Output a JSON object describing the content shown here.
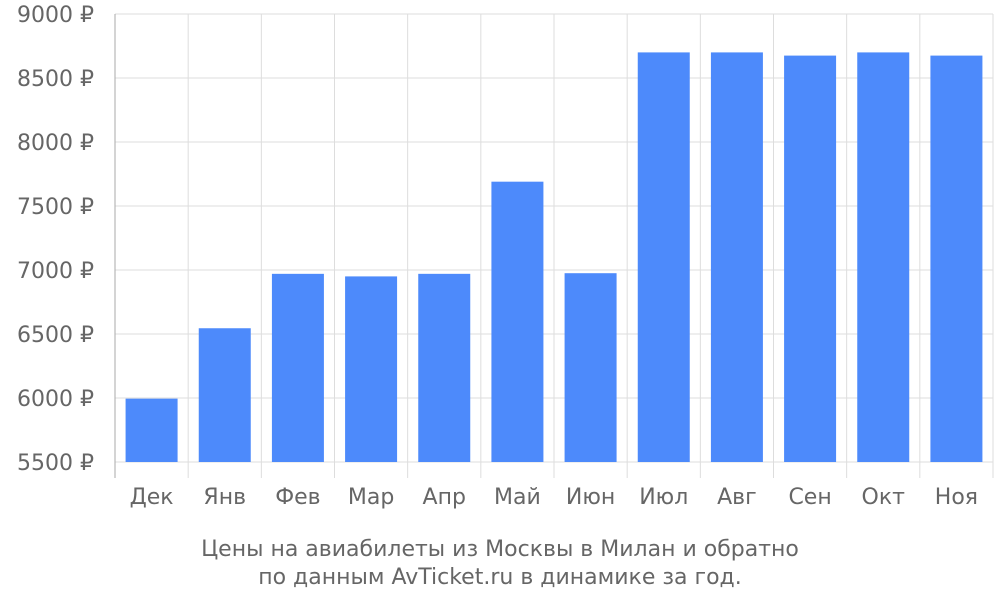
{
  "colors": {
    "bar": "#4d8afb",
    "grid": "#dddddd",
    "text": "#666666",
    "axis": "#aaaaaa"
  },
  "caption": {
    "line1": "Цены на авиабилеты из Москвы в Милан и обратно",
    "line2": "по данным AvTicket.ru в динамике за год."
  },
  "chart_data": {
    "type": "bar",
    "categories": [
      "Дек",
      "Янв",
      "Фев",
      "Мар",
      "Апр",
      "Май",
      "Июн",
      "Июл",
      "Авг",
      "Сен",
      "Окт",
      "Ноя"
    ],
    "values": [
      5995,
      6545,
      6970,
      6950,
      6970,
      7690,
      6975,
      8700,
      8700,
      8675,
      8700,
      8675
    ],
    "ylim": [
      5500,
      9000
    ],
    "yticks": [
      5500,
      6000,
      6500,
      7000,
      7500,
      8000,
      8500,
      9000
    ],
    "ytick_labels": [
      "5500 ₽",
      "6000 ₽",
      "6500 ₽",
      "7000 ₽",
      "7500 ₽",
      "8000 ₽",
      "8500 ₽",
      "9000 ₽"
    ],
    "grid": true
  }
}
